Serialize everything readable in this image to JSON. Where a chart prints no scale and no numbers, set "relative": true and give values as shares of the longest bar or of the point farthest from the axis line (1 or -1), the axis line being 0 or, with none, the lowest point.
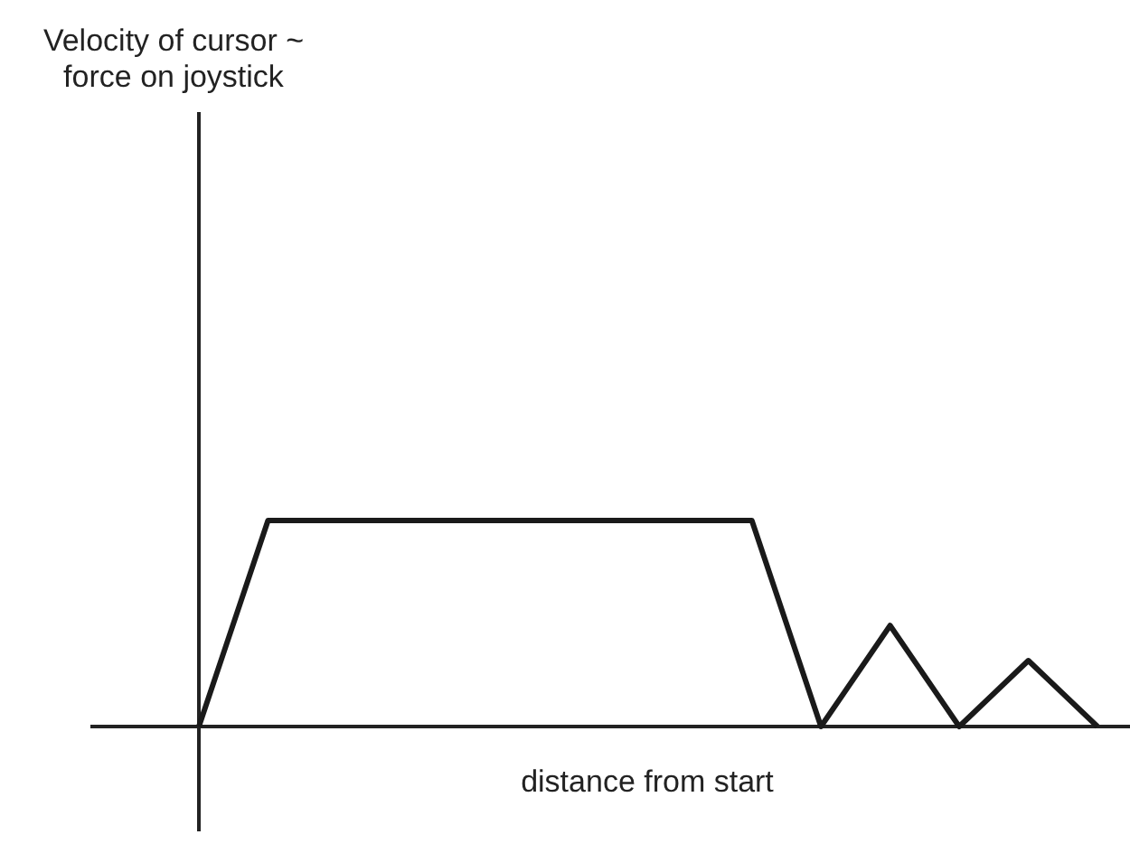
{
  "chart_data": {
    "type": "line",
    "relative": true,
    "annotations": [
      "Velocity of cursor ~\nforce on joystick"
    ],
    "xlabel": "distance from start",
    "categories": [
      null,
      null,
      null,
      null,
      null,
      null,
      null,
      null,
      null,
      null,
      null,
      null,
      null,
      null
    ],
    "series": [
      {
        "color": "#1a1a1a",
        "values": [
          0,
          1,
          1,
          1,
          1,
          1,
          1,
          1,
          1,
          0,
          0.49,
          0,
          0.32,
          0
        ]
      }
    ],
    "line_style": "solid"
  }
}
